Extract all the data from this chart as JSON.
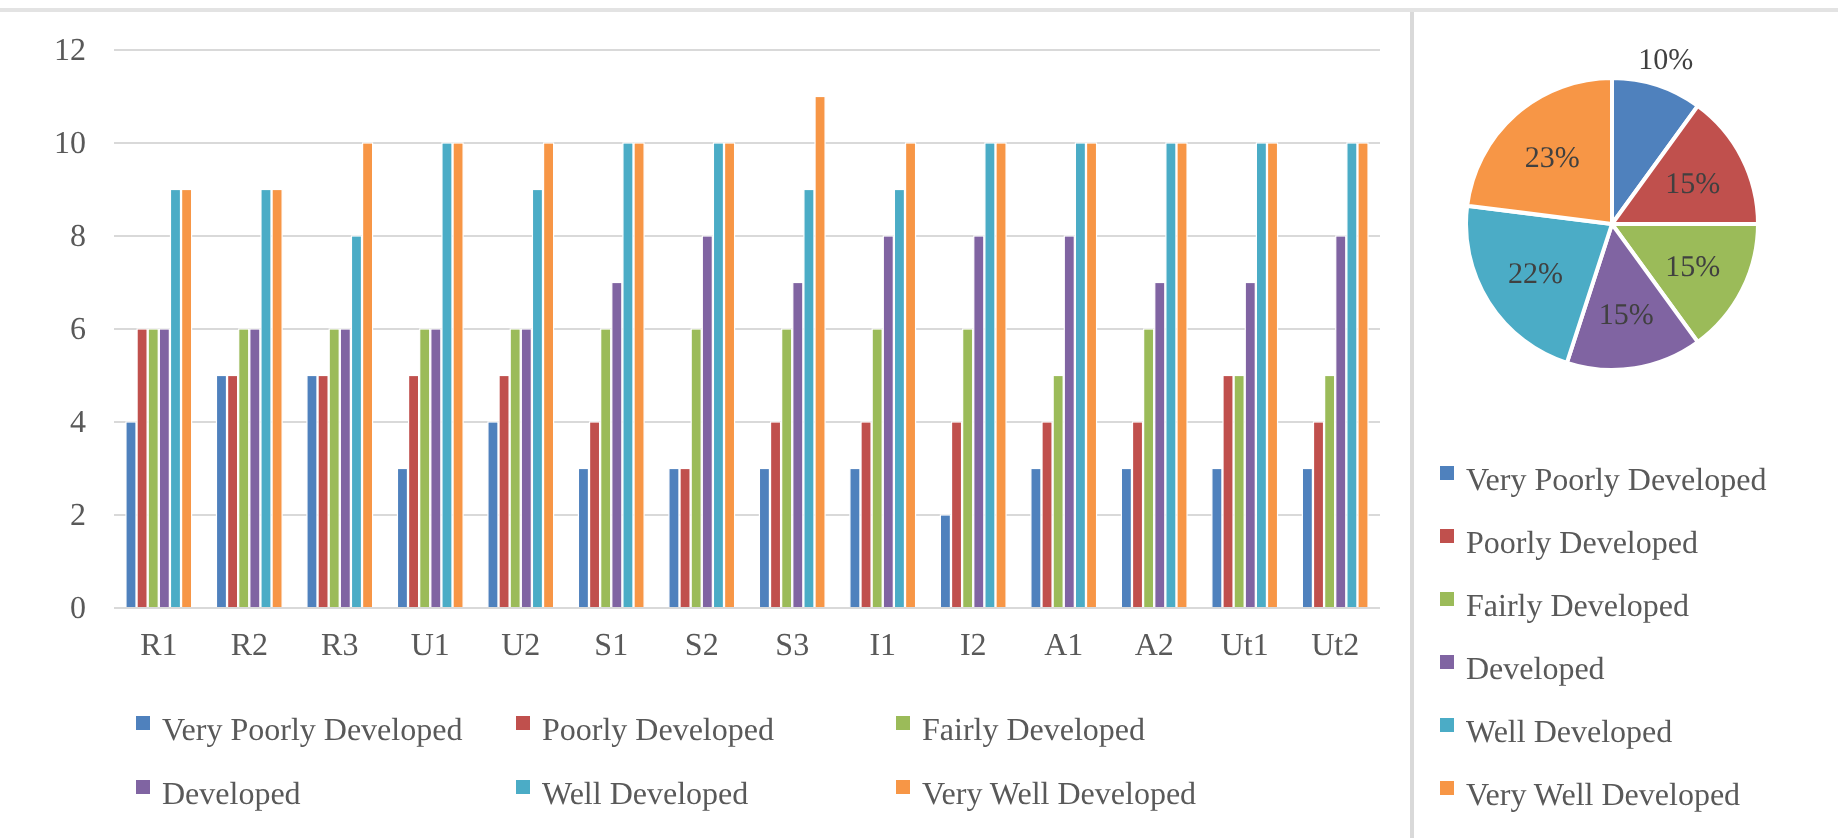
{
  "chart_data": [
    {
      "type": "bar",
      "categories": [
        "R1",
        "R2",
        "R3",
        "U1",
        "U2",
        "S1",
        "S2",
        "S3",
        "I1",
        "I2",
        "A1",
        "A2",
        "Ut1",
        "Ut2"
      ],
      "series": [
        {
          "name": "Very Poorly Developed",
          "color": "#4f81bd",
          "values": [
            4,
            5,
            5,
            3,
            4,
            3,
            3,
            3,
            3,
            2,
            3,
            3,
            3,
            3
          ]
        },
        {
          "name": "Poorly Developed",
          "color": "#c0504d",
          "values": [
            6,
            5,
            5,
            5,
            5,
            4,
            3,
            4,
            4,
            4,
            4,
            4,
            5,
            4
          ]
        },
        {
          "name": "Fairly Developed",
          "color": "#9bbb59",
          "values": [
            6,
            6,
            6,
            6,
            6,
            6,
            6,
            6,
            6,
            6,
            5,
            6,
            5,
            5
          ]
        },
        {
          "name": "Developed",
          "color": "#8064a2",
          "values": [
            6,
            6,
            6,
            6,
            6,
            7,
            8,
            7,
            8,
            8,
            8,
            7,
            7,
            8
          ]
        },
        {
          "name": "Well Developed",
          "color": "#4bacc6",
          "values": [
            9,
            9,
            8,
            10,
            9,
            10,
            10,
            9,
            9,
            10,
            10,
            10,
            10,
            10
          ]
        },
        {
          "name": "Very Well Developed",
          "color": "#f79646",
          "values": [
            9,
            9,
            10,
            10,
            10,
            10,
            10,
            11,
            10,
            10,
            10,
            10,
            10,
            10
          ]
        }
      ],
      "ylim": [
        0,
        12
      ],
      "yticks": [
        0,
        2,
        4,
        6,
        8,
        10,
        12
      ],
      "grid": "y",
      "legend": "bottom"
    },
    {
      "type": "pie",
      "categories": [
        "Very Poorly Developed",
        "Poorly Developed",
        "Fairly Developed",
        "Developed",
        "Well Developed",
        "Very Well Developed"
      ],
      "values": [
        10,
        15,
        15,
        15,
        22,
        23
      ],
      "colors": [
        "#4f81bd",
        "#c0504d",
        "#9bbb59",
        "#8064a2",
        "#4bacc6",
        "#f79646"
      ],
      "value_labels": [
        "10%",
        "15%",
        "15%",
        "15%",
        "22%",
        "23%"
      ],
      "legend": "bottom"
    }
  ]
}
